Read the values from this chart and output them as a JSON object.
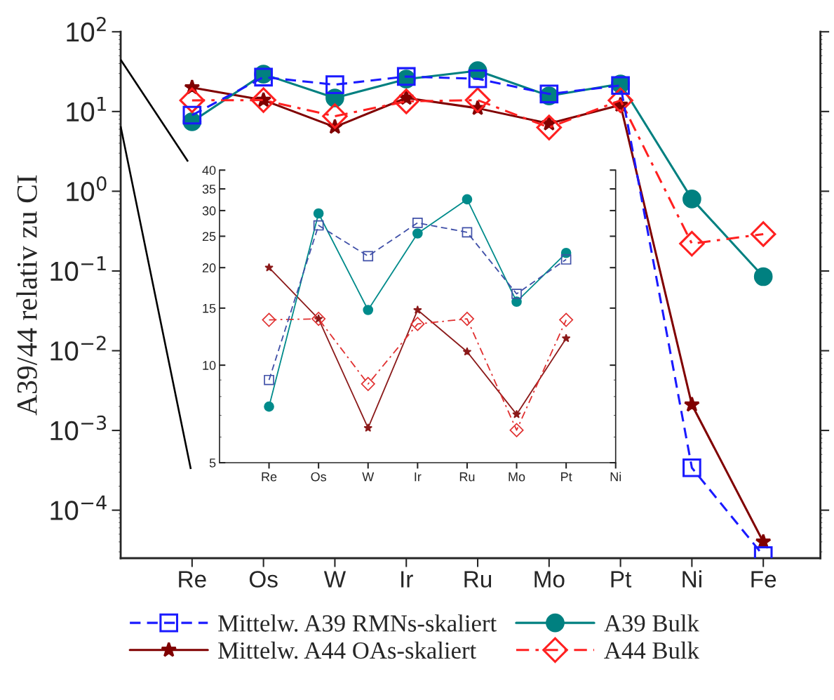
{
  "chart_data": [
    {
      "type": "line",
      "ylabel": "A39/44 relativ zu CI",
      "log": true,
      "categories": [
        "Re",
        "Os",
        "W",
        "Ir",
        "Ru",
        "Mo",
        "Pt",
        "Ni",
        "Fe"
      ],
      "ylim": [
        2.5e-05,
        100
      ],
      "yticks": [
        {
          "value": 100,
          "label": "10$^{2}$"
        },
        {
          "value": 10,
          "label": "10$^{1}$"
        },
        {
          "value": 1,
          "label": "10$^{0}$"
        },
        {
          "value": 0.1,
          "label": "10$^{−1}$"
        },
        {
          "value": 0.01,
          "label": "10$^{−2}$"
        },
        {
          "value": 0.001,
          "label": "10$^{−3}$"
        },
        {
          "value": 0.0001,
          "label": "10$^{−4}$"
        }
      ],
      "legend": "bottom",
      "grid": false,
      "series": [
        {
          "name": "Mittelw. A39 RMNs-skaliert",
          "color": "#1a1aff",
          "marker": "square",
          "line_style": "dashed",
          "values": [
            9.0,
            27.0,
            21.7,
            27.5,
            25.7,
            16.6,
            21.2,
            0.00034,
            2.7e-05
          ]
        },
        {
          "name": "A39 Bulk",
          "color": "#008080",
          "marker": "circle",
          "line_style": "solid",
          "values": [
            7.45,
            29.4,
            14.8,
            25.5,
            32.5,
            15.7,
            22.2,
            0.8,
            0.085
          ]
        },
        {
          "name": "Mittelw. A44 OAs-skaliert",
          "color": "#800000",
          "marker": "star",
          "line_style": "solid",
          "values": [
            20.0,
            13.9,
            6.4,
            14.8,
            11.0,
            7.05,
            12.1,
            0.0021,
            4e-05
          ]
        },
        {
          "name": "A44 Bulk",
          "color": "#ff2020",
          "marker": "diamond",
          "line_style": "dashdot",
          "values": [
            13.8,
            13.9,
            8.75,
            13.4,
            13.9,
            6.3,
            13.8,
            0.22,
            0.29
          ]
        }
      ]
    },
    {
      "type": "line",
      "log": true,
      "categories": [
        "Re",
        "Os",
        "W",
        "Ir",
        "Ru",
        "Mo",
        "Pt",
        "Ni"
      ],
      "ylim": [
        5,
        40
      ],
      "yticks": [
        5,
        10,
        15,
        20,
        25,
        30,
        35,
        40
      ],
      "grid": false,
      "series": [
        {
          "color": "#4050a8",
          "marker": "square",
          "line_style": "dashed",
          "values": [
            9.0,
            27.0,
            21.7,
            27.5,
            25.7,
            16.6,
            21.2,
            null
          ]
        },
        {
          "color": "#008b8b",
          "marker": "circle",
          "line_style": "solid",
          "values": [
            7.45,
            29.4,
            14.8,
            25.5,
            32.5,
            15.7,
            22.2,
            null
          ]
        },
        {
          "color": "#8b1a1a",
          "marker": "star",
          "line_style": "solid",
          "values": [
            20.0,
            13.9,
            6.4,
            14.8,
            11.0,
            7.05,
            12.1,
            null
          ]
        },
        {
          "color": "#e03030",
          "marker": "diamond",
          "line_style": "dashdot",
          "values": [
            13.8,
            13.9,
            8.75,
            13.4,
            13.9,
            6.3,
            13.8,
            null
          ]
        }
      ]
    }
  ]
}
